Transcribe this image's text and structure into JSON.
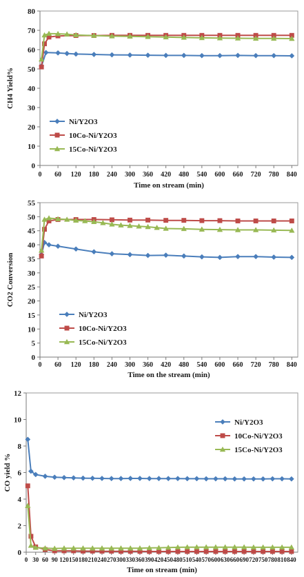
{
  "chart_data": [
    {
      "type": "line",
      "ylabel": "CH4 Yield%",
      "xlabel": "Time on stream (min)",
      "xlim": [
        0,
        860
      ],
      "ylim": [
        0,
        80
      ],
      "yticks": [
        "0",
        "10",
        "20",
        "30",
        "40",
        "50",
        "60",
        "70",
        "80"
      ],
      "xticks": [
        "0",
        "60",
        "120",
        "180",
        "240",
        "300",
        "360",
        "420",
        "480",
        "540",
        "600",
        "660",
        "720",
        "780",
        "840"
      ],
      "grid": false,
      "legend_position": "bottom-left",
      "series": [
        {
          "name": "Ni/Y2O3",
          "color": "#4a7ebb",
          "marker": "diamond",
          "x": [
            5,
            20,
            60,
            90,
            120,
            180,
            240,
            300,
            360,
            420,
            480,
            540,
            600,
            660,
            720,
            780,
            840
          ],
          "y": [
            51.5,
            58.5,
            58.3,
            58.0,
            57.7,
            57.5,
            57.3,
            57.2,
            57.1,
            57.0,
            57.0,
            56.9,
            56.9,
            57.0,
            56.9,
            56.9,
            56.8
          ]
        },
        {
          "name": "10Co-Ni/Y2O3",
          "color": "#be4b48",
          "marker": "square",
          "x": [
            5,
            15,
            30,
            60,
            120,
            180,
            240,
            300,
            360,
            420,
            480,
            540,
            600,
            660,
            720,
            780,
            840
          ],
          "y": [
            51,
            63,
            66.5,
            67.1,
            67.3,
            67.3,
            67.4,
            67.4,
            67.4,
            67.4,
            67.4,
            67.4,
            67.4,
            67.4,
            67.4,
            67.4,
            67.4
          ]
        },
        {
          "name": "15Co-Ni/Y2O3",
          "color": "#98b954",
          "marker": "triangle",
          "x": [
            5,
            15,
            30,
            60,
            90,
            120,
            180,
            240,
            300,
            360,
            420,
            480,
            540,
            600,
            660,
            720,
            780,
            840
          ],
          "y": [
            55,
            67.5,
            68.3,
            68.2,
            68.0,
            67.6,
            67.3,
            67.0,
            66.9,
            66.7,
            66.5,
            66.3,
            66.1,
            66.0,
            65.9,
            65.8,
            65.8,
            65.7
          ]
        }
      ]
    },
    {
      "type": "line",
      "ylabel": "CO2 Conversion",
      "xlabel": "Time on the stream (min)",
      "xlim": [
        0,
        860
      ],
      "ylim": [
        0,
        55
      ],
      "yticks": [
        "0",
        "5",
        "10",
        "15",
        "20",
        "25",
        "30",
        "35",
        "40",
        "45",
        "50",
        "55"
      ],
      "xticks": [
        "0",
        "60",
        "120",
        "180",
        "240",
        "300",
        "360",
        "420",
        "480",
        "540",
        "600",
        "660",
        "720",
        "780",
        "840"
      ],
      "grid": false,
      "legend_position": "bottom-left",
      "series": [
        {
          "name": "Ni/Y2O3",
          "color": "#4a7ebb",
          "marker": "diamond",
          "x": [
            5,
            15,
            30,
            60,
            120,
            180,
            240,
            300,
            360,
            420,
            480,
            540,
            600,
            660,
            720,
            780,
            840
          ],
          "y": [
            36.5,
            40.8,
            40.0,
            39.5,
            38.5,
            37.5,
            36.8,
            36.5,
            36.2,
            36.3,
            36.0,
            35.7,
            35.5,
            35.8,
            35.8,
            35.6,
            35.5
          ]
        },
        {
          "name": "10Co-Ni/Y2O3",
          "color": "#be4b48",
          "marker": "square",
          "x": [
            5,
            15,
            30,
            60,
            120,
            180,
            240,
            300,
            360,
            420,
            480,
            540,
            600,
            660,
            720,
            780,
            840
          ],
          "y": [
            36,
            45.5,
            48.5,
            49.0,
            49.0,
            49.0,
            48.9,
            48.8,
            48.8,
            48.7,
            48.7,
            48.6,
            48.6,
            48.5,
            48.5,
            48.5,
            48.5
          ]
        },
        {
          "name": "15Co-Ni/Y2O3",
          "color": "#98b954",
          "marker": "triangle",
          "x": [
            5,
            15,
            30,
            60,
            90,
            120,
            150,
            180,
            210,
            240,
            270,
            300,
            330,
            360,
            390,
            420,
            480,
            540,
            600,
            660,
            720,
            780,
            840
          ],
          "y": [
            38,
            49.0,
            49.5,
            49.2,
            49.0,
            48.7,
            48.5,
            48.2,
            47.8,
            47.3,
            47.0,
            46.8,
            46.6,
            46.4,
            46.1,
            45.8,
            45.7,
            45.5,
            45.4,
            45.3,
            45.3,
            45.2,
            45.1
          ]
        }
      ]
    },
    {
      "type": "line",
      "ylabel": "CO yield %",
      "xlabel": "Time on stream (min)",
      "xlim": [
        0,
        860
      ],
      "ylim": [
        0,
        12
      ],
      "yticks": [
        "0",
        "2",
        "4",
        "6",
        "8",
        "10",
        "12"
      ],
      "xticks": [
        "0",
        "30",
        "60",
        "90",
        "120",
        "150",
        "180",
        "210",
        "240",
        "270",
        "300",
        "330",
        "360",
        "390",
        "420",
        "450",
        "480",
        "510",
        "540",
        "570",
        "600",
        "630",
        "660",
        "690",
        "720",
        "750",
        "780",
        "810",
        "840"
      ],
      "grid": false,
      "legend_position": "top-right",
      "series": [
        {
          "name": "Ni/Y2O3",
          "color": "#4a7ebb",
          "marker": "diamond",
          "x": [
            5,
            15,
            30,
            60,
            90,
            120,
            150,
            180,
            210,
            240,
            270,
            300,
            330,
            360,
            390,
            420,
            450,
            480,
            510,
            540,
            570,
            600,
            630,
            660,
            690,
            720,
            750,
            780,
            810,
            840
          ],
          "y": [
            8.5,
            6.1,
            5.85,
            5.72,
            5.65,
            5.62,
            5.6,
            5.58,
            5.57,
            5.56,
            5.55,
            5.55,
            5.56,
            5.56,
            5.55,
            5.55,
            5.55,
            5.55,
            5.54,
            5.54,
            5.53,
            5.53,
            5.53,
            5.52,
            5.52,
            5.52,
            5.52,
            5.53,
            5.53,
            5.52
          ]
        },
        {
          "name": "10Co-Ni/Y2O3",
          "color": "#be4b48",
          "marker": "square",
          "x": [
            5,
            15,
            30,
            60,
            90,
            120,
            150,
            180,
            210,
            240,
            270,
            300,
            330,
            360,
            390,
            420,
            450,
            480,
            510,
            540,
            570,
            600,
            630,
            660,
            690,
            720,
            750,
            780,
            810,
            840
          ],
          "y": [
            5.0,
            1.2,
            0.4,
            0.2,
            0.1,
            0.1,
            0.1,
            0.08,
            0.08,
            0.07,
            0.07,
            0.06,
            0.06,
            0.06,
            0.05,
            0.05,
            0.05,
            0.05,
            0.05,
            0.05,
            0.05,
            0.05,
            0.05,
            0.05,
            0.05,
            0.05,
            0.05,
            0.05,
            0.05,
            0.05
          ]
        },
        {
          "name": "15Co-Ni/Y2O3",
          "color": "#98b954",
          "marker": "triangle",
          "x": [
            5,
            15,
            30,
            60,
            90,
            120,
            150,
            180,
            210,
            240,
            270,
            300,
            330,
            360,
            390,
            420,
            450,
            480,
            510,
            540,
            570,
            600,
            630,
            660,
            690,
            720,
            750,
            780,
            810,
            840
          ],
          "y": [
            3.5,
            0.5,
            0.35,
            0.3,
            0.28,
            0.3,
            0.3,
            0.3,
            0.3,
            0.3,
            0.3,
            0.3,
            0.3,
            0.3,
            0.32,
            0.33,
            0.35,
            0.37,
            0.38,
            0.38,
            0.38,
            0.38,
            0.38,
            0.38,
            0.38,
            0.37,
            0.37,
            0.37,
            0.37,
            0.37
          ]
        }
      ]
    }
  ]
}
